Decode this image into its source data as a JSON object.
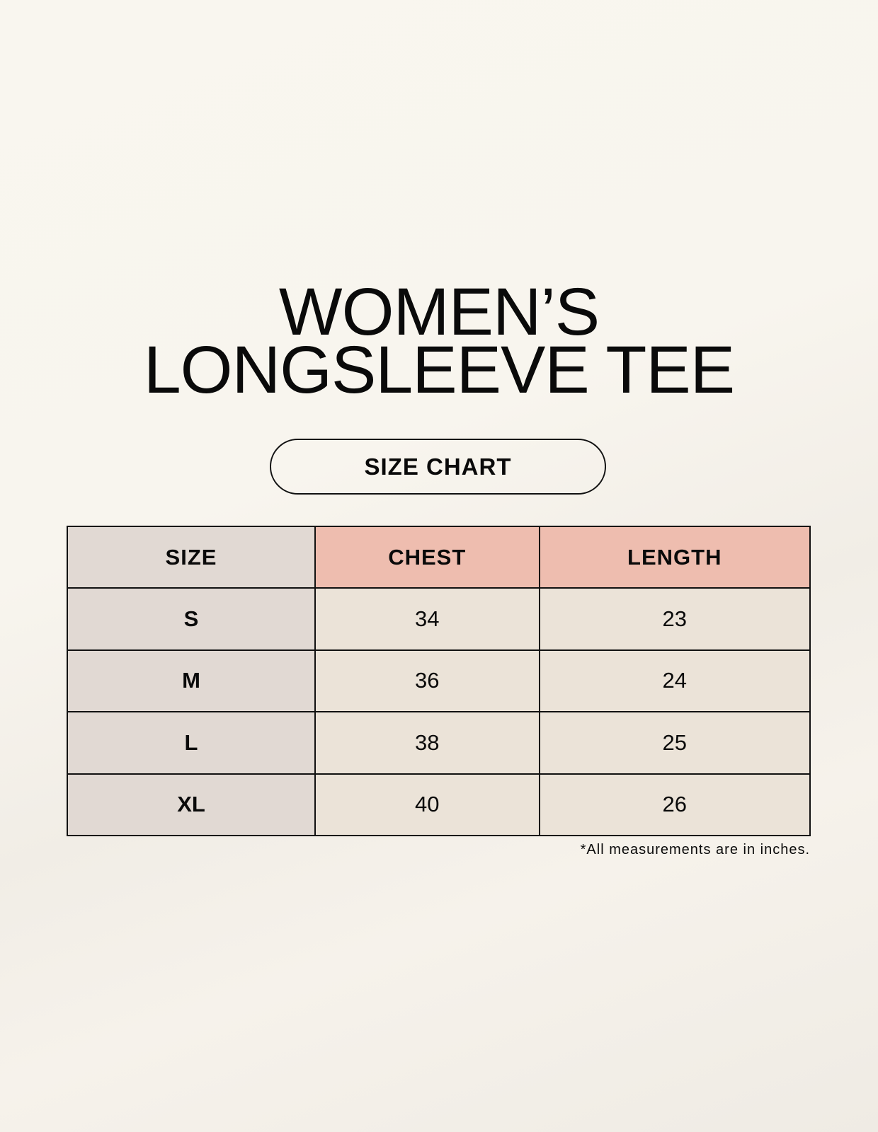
{
  "title": {
    "line1": "WOMEN’S",
    "line2": "LONGSLEEVE TEE"
  },
  "badge": "SIZE CHART",
  "table": {
    "headers": [
      "SIZE",
      "CHEST",
      "LENGTH"
    ],
    "rows": [
      [
        "S",
        "34",
        "23"
      ],
      [
        "M",
        "36",
        "24"
      ],
      [
        "L",
        "38",
        "25"
      ],
      [
        "XL",
        "40",
        "26"
      ]
    ]
  },
  "note": "*All measurements are in inches.",
  "colors": {
    "size_column": "#e1d9d3",
    "header_accent": "#eebdaf",
    "value_cells": "#ebe3d8"
  }
}
